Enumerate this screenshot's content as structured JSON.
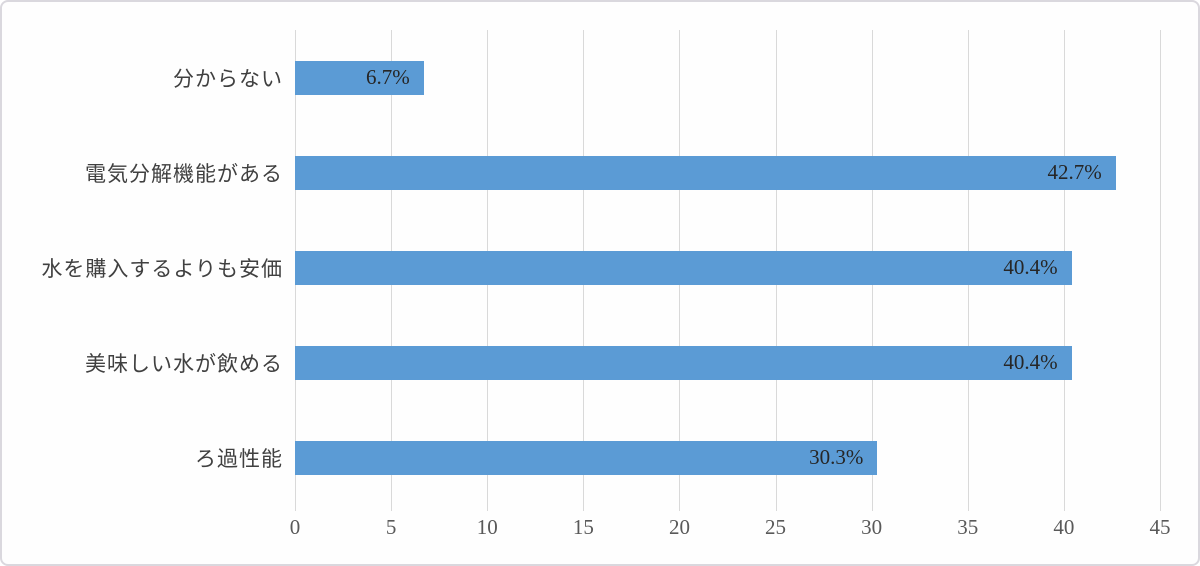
{
  "window": {
    "background": "#fefefe",
    "border_color": "#dad8de"
  },
  "chart_data": {
    "type": "bar",
    "orientation": "horizontal",
    "title": "",
    "xlabel": "",
    "ylabel": "",
    "categories": [
      "分からない",
      "電気分解機能がある",
      "水を購入するよりも安価",
      "美味しい水が飲める",
      "ろ過性能"
    ],
    "values": [
      6.7,
      42.7,
      40.4,
      40.4,
      30.3
    ],
    "data_labels": [
      "6.7%",
      "42.7%",
      "40.4%",
      "40.4%",
      "30.3%"
    ],
    "xlim": [
      0,
      45
    ],
    "x_ticks": [
      "0",
      "5",
      "10",
      "15",
      "20",
      "25",
      "30",
      "35",
      "40",
      "45"
    ],
    "x_tick_step": 5,
    "grid": true,
    "legend": false,
    "data_label_position": "inside-end",
    "bar_color": "#5b9bd5",
    "gridline_color": "#d9d9d9",
    "category_label_color": "#404040",
    "data_label_color": "#262626",
    "tick_label_color": "#595959"
  }
}
